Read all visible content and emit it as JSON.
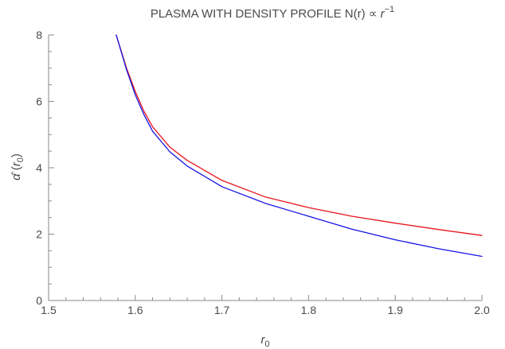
{
  "chart_data": {
    "type": "line",
    "title": {
      "main": "PLASMA WITH DENSITY PROFILE N(r) ∝ ",
      "var": "r",
      "sup": "−1"
    },
    "xlabel": {
      "var": "r",
      "sub": "0"
    },
    "ylabel": {
      "var": "α̂",
      "open": " (",
      "arg": "r",
      "sub": "0",
      "close": ")"
    },
    "xlim": [
      1.5,
      2.0
    ],
    "ylim": [
      0,
      8
    ],
    "xticks": [
      1.5,
      1.6,
      1.7,
      1.8,
      1.9,
      2.0
    ],
    "xtick_labels": [
      "1.5",
      "1.6",
      "1.7",
      "1.8",
      "1.9",
      "2.0"
    ],
    "yticks": [
      0,
      2,
      4,
      6,
      8
    ],
    "ytick_labels": [
      "0",
      "2",
      "4",
      "6",
      "8"
    ],
    "grid": false,
    "series": [
      {
        "color": "#e8141e",
        "x": [
          1.578,
          1.59,
          1.6,
          1.61,
          1.62,
          1.64,
          1.66,
          1.7,
          1.75,
          1.8,
          1.85,
          1.9,
          1.95,
          2.0
        ],
        "y": [
          8.0,
          7.0,
          6.3,
          5.7,
          5.23,
          4.62,
          4.22,
          3.62,
          3.12,
          2.8,
          2.54,
          2.33,
          2.14,
          1.96
        ]
      },
      {
        "color": "#1414e6",
        "x": [
          1.578,
          1.59,
          1.6,
          1.61,
          1.62,
          1.64,
          1.66,
          1.7,
          1.75,
          1.8,
          1.85,
          1.9,
          1.95,
          2.0
        ],
        "y": [
          8.0,
          6.95,
          6.2,
          5.6,
          5.1,
          4.48,
          4.05,
          3.43,
          2.93,
          2.54,
          2.15,
          1.83,
          1.56,
          1.33
        ]
      }
    ]
  }
}
